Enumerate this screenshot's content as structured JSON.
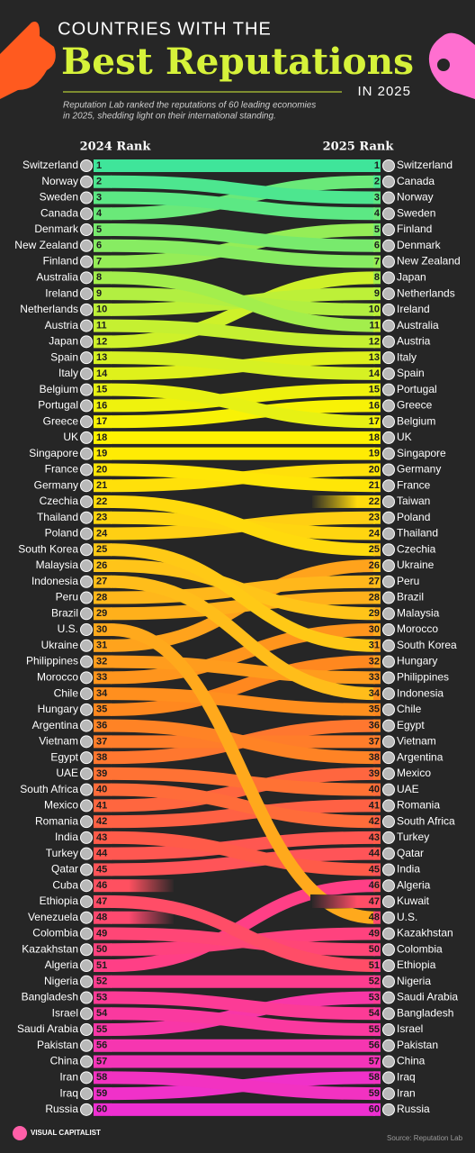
{
  "chart_data": {
    "type": "bump",
    "kicker": "COUNTRIES WITH THE",
    "title": "Best Reputations",
    "title_year": "IN 2025",
    "subtitle": [
      "Reputation Lab ranked the reputations of 60 leading economies",
      "in 2025, shedding light on their international standing."
    ],
    "left_header": "2024 Rank",
    "right_header": "2025 Rank",
    "ribbon_colors": [
      "#3fe59a",
      "#b8f03c",
      "#fff200",
      "#ffc21a",
      "#ff8a1e",
      "#ff5a4a",
      "#ff3d8a",
      "#ee2fd2"
    ],
    "left": [
      {
        "name": "Switzerland",
        "rank": 1
      },
      {
        "name": "Norway",
        "rank": 2
      },
      {
        "name": "Sweden",
        "rank": 3
      },
      {
        "name": "Canada",
        "rank": 4
      },
      {
        "name": "Denmark",
        "rank": 5
      },
      {
        "name": "New Zealand",
        "rank": 6
      },
      {
        "name": "Finland",
        "rank": 7
      },
      {
        "name": "Australia",
        "rank": 8
      },
      {
        "name": "Ireland",
        "rank": 9
      },
      {
        "name": "Netherlands",
        "rank": 10
      },
      {
        "name": "Austria",
        "rank": 11
      },
      {
        "name": "Japan",
        "rank": 12
      },
      {
        "name": "Spain",
        "rank": 13
      },
      {
        "name": "Italy",
        "rank": 14
      },
      {
        "name": "Belgium",
        "rank": 15
      },
      {
        "name": "Portugal",
        "rank": 16
      },
      {
        "name": "Greece",
        "rank": 17
      },
      {
        "name": "UK",
        "rank": 18
      },
      {
        "name": "Singapore",
        "rank": 19
      },
      {
        "name": "France",
        "rank": 20
      },
      {
        "name": "Germany",
        "rank": 21
      },
      {
        "name": "Czechia",
        "rank": 22
      },
      {
        "name": "Thailand",
        "rank": 23
      },
      {
        "name": "Poland",
        "rank": 24
      },
      {
        "name": "South Korea",
        "rank": 25
      },
      {
        "name": "Malaysia",
        "rank": 26
      },
      {
        "name": "Indonesia",
        "rank": 27
      },
      {
        "name": "Peru",
        "rank": 28
      },
      {
        "name": "Brazil",
        "rank": 29
      },
      {
        "name": "U.S.",
        "rank": 30
      },
      {
        "name": "Ukraine",
        "rank": 31
      },
      {
        "name": "Philippines",
        "rank": 32
      },
      {
        "name": "Morocco",
        "rank": 33
      },
      {
        "name": "Chile",
        "rank": 34
      },
      {
        "name": "Hungary",
        "rank": 35
      },
      {
        "name": "Argentina",
        "rank": 36
      },
      {
        "name": "Vietnam",
        "rank": 37
      },
      {
        "name": "Egypt",
        "rank": 38
      },
      {
        "name": "UAE",
        "rank": 39
      },
      {
        "name": "South Africa",
        "rank": 40
      },
      {
        "name": "Mexico",
        "rank": 41
      },
      {
        "name": "Romania",
        "rank": 42
      },
      {
        "name": "India",
        "rank": 43
      },
      {
        "name": "Turkey",
        "rank": 44
      },
      {
        "name": "Qatar",
        "rank": 45
      },
      {
        "name": "Cuba",
        "rank": 46
      },
      {
        "name": "Ethiopia",
        "rank": 47
      },
      {
        "name": "Venezuela",
        "rank": 48
      },
      {
        "name": "Colombia",
        "rank": 49
      },
      {
        "name": "Kazakhstan",
        "rank": 50
      },
      {
        "name": "Algeria",
        "rank": 51
      },
      {
        "name": "Nigeria",
        "rank": 52
      },
      {
        "name": "Bangladesh",
        "rank": 53
      },
      {
        "name": "Israel",
        "rank": 54
      },
      {
        "name": "Saudi Arabia",
        "rank": 55
      },
      {
        "name": "Pakistan",
        "rank": 56
      },
      {
        "name": "China",
        "rank": 57
      },
      {
        "name": "Iran",
        "rank": 58
      },
      {
        "name": "Iraq",
        "rank": 59
      },
      {
        "name": "Russia",
        "rank": 60
      }
    ],
    "right": [
      {
        "name": "Switzerland",
        "rank": 1
      },
      {
        "name": "Canada",
        "rank": 2
      },
      {
        "name": "Norway",
        "rank": 3
      },
      {
        "name": "Sweden",
        "rank": 4
      },
      {
        "name": "Finland",
        "rank": 5
      },
      {
        "name": "Denmark",
        "rank": 6
      },
      {
        "name": "New Zealand",
        "rank": 7
      },
      {
        "name": "Japan",
        "rank": 8
      },
      {
        "name": "Netherlands",
        "rank": 9
      },
      {
        "name": "Ireland",
        "rank": 10
      },
      {
        "name": "Australia",
        "rank": 11
      },
      {
        "name": "Austria",
        "rank": 12
      },
      {
        "name": "Italy",
        "rank": 13
      },
      {
        "name": "Spain",
        "rank": 14
      },
      {
        "name": "Portugal",
        "rank": 15
      },
      {
        "name": "Greece",
        "rank": 16
      },
      {
        "name": "Belgium",
        "rank": 17
      },
      {
        "name": "UK",
        "rank": 18
      },
      {
        "name": "Singapore",
        "rank": 19
      },
      {
        "name": "Germany",
        "rank": 20
      },
      {
        "name": "France",
        "rank": 21
      },
      {
        "name": "Taiwan",
        "rank": 22
      },
      {
        "name": "Poland",
        "rank": 23
      },
      {
        "name": "Thailand",
        "rank": 24
      },
      {
        "name": "Czechia",
        "rank": 25
      },
      {
        "name": "Ukraine",
        "rank": 26
      },
      {
        "name": "Peru",
        "rank": 27
      },
      {
        "name": "Brazil",
        "rank": 28
      },
      {
        "name": "Malaysia",
        "rank": 29
      },
      {
        "name": "Morocco",
        "rank": 30
      },
      {
        "name": "South Korea",
        "rank": 31
      },
      {
        "name": "Hungary",
        "rank": 32
      },
      {
        "name": "Philippines",
        "rank": 33
      },
      {
        "name": "Indonesia",
        "rank": 34
      },
      {
        "name": "Chile",
        "rank": 35
      },
      {
        "name": "Egypt",
        "rank": 36
      },
      {
        "name": "Vietnam",
        "rank": 37
      },
      {
        "name": "Argentina",
        "rank": 38
      },
      {
        "name": "Mexico",
        "rank": 39
      },
      {
        "name": "UAE",
        "rank": 40
      },
      {
        "name": "Romania",
        "rank": 41
      },
      {
        "name": "South Africa",
        "rank": 42
      },
      {
        "name": "Turkey",
        "rank": 43
      },
      {
        "name": "Qatar",
        "rank": 44
      },
      {
        "name": "India",
        "rank": 45
      },
      {
        "name": "Algeria",
        "rank": 46
      },
      {
        "name": "Kuwait",
        "rank": 47
      },
      {
        "name": "U.S.",
        "rank": 48
      },
      {
        "name": "Kazakhstan",
        "rank": 49
      },
      {
        "name": "Colombia",
        "rank": 50
      },
      {
        "name": "Ethiopia",
        "rank": 51
      },
      {
        "name": "Nigeria",
        "rank": 52
      },
      {
        "name": "Saudi Arabia",
        "rank": 53
      },
      {
        "name": "Bangladesh",
        "rank": 54
      },
      {
        "name": "Israel",
        "rank": 55
      },
      {
        "name": "Pakistan",
        "rank": 56
      },
      {
        "name": "China",
        "rank": 57
      },
      {
        "name": "Iraq",
        "rank": 58
      },
      {
        "name": "Iran",
        "rank": 59
      },
      {
        "name": "Russia",
        "rank": 60
      }
    ],
    "brand": "VISUAL CAPITALIST",
    "source": "Source: Reputation Lab"
  }
}
